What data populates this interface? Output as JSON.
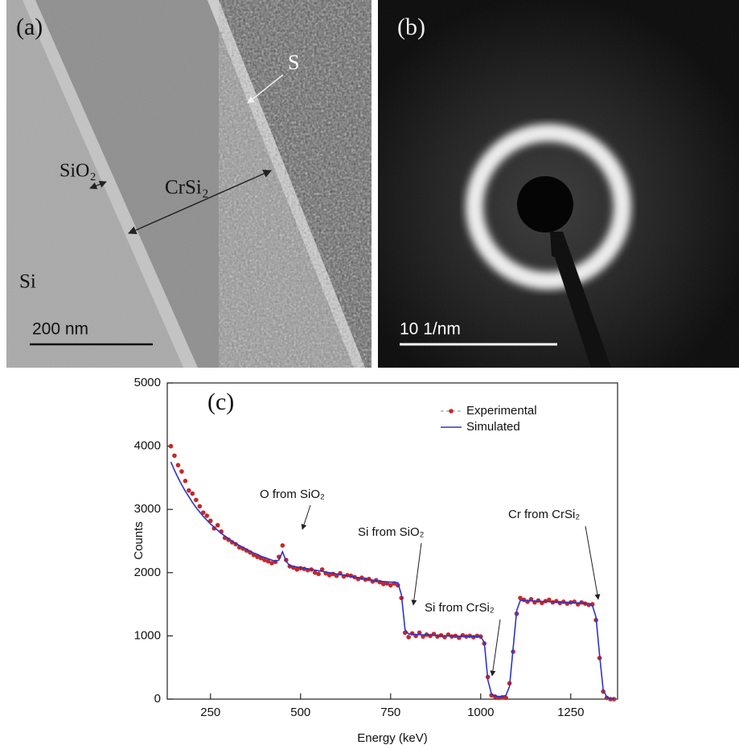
{
  "panels": {
    "a": {
      "label": "(a)",
      "s_label": "S",
      "sio2_label": "SiO₂",
      "crsi2_label": "CrSi₂",
      "si_label": "Si",
      "scale_bar": "200 nm"
    },
    "b": {
      "label": "(b)",
      "scale_bar": "10 1/nm"
    }
  },
  "chart_data": {
    "type": "line",
    "panel_label": "(c)",
    "x_label": "Energy (keV)",
    "y_label": "Counts",
    "xlim": [
      130,
      1380
    ],
    "ylim": [
      0,
      5000
    ],
    "xticks": [
      250,
      500,
      750,
      1000,
      1250
    ],
    "yticks": [
      0,
      1000,
      2000,
      3000,
      4000,
      5000
    ],
    "legend": "upper right",
    "annotations": [
      "O from SiO₂",
      "Si from SiO₂",
      "Si from CrSi₂",
      "Cr from CrSi₂"
    ],
    "x": [
      140,
      150,
      160,
      170,
      180,
      190,
      200,
      210,
      220,
      230,
      240,
      250,
      260,
      270,
      280,
      290,
      300,
      310,
      320,
      330,
      340,
      350,
      360,
      370,
      380,
      390,
      400,
      410,
      420,
      430,
      440,
      450,
      460,
      470,
      480,
      490,
      500,
      510,
      520,
      530,
      540,
      550,
      560,
      570,
      580,
      590,
      600,
      610,
      620,
      630,
      640,
      650,
      660,
      670,
      680,
      690,
      700,
      710,
      720,
      730,
      740,
      750,
      760,
      770,
      780,
      790,
      800,
      810,
      820,
      830,
      840,
      850,
      860,
      870,
      880,
      890,
      900,
      910,
      920,
      930,
      940,
      950,
      960,
      970,
      980,
      990,
      1000,
      1010,
      1020,
      1030,
      1040,
      1050,
      1060,
      1070,
      1080,
      1090,
      1100,
      1110,
      1120,
      1130,
      1140,
      1150,
      1160,
      1170,
      1180,
      1190,
      1200,
      1210,
      1220,
      1230,
      1240,
      1250,
      1260,
      1270,
      1280,
      1290,
      1300,
      1310,
      1320,
      1330,
      1340,
      1350,
      1360,
      1370
    ],
    "series": [
      {
        "name": "Experimental",
        "color": "#c62828",
        "mode": "markers",
        "values": [
          4000,
          3850,
          3700,
          3600,
          3450,
          3300,
          3250,
          3150,
          3050,
          2950,
          2900,
          2820,
          2700,
          2750,
          2650,
          2550,
          2520,
          2480,
          2450,
          2400,
          2380,
          2350,
          2320,
          2280,
          2250,
          2230,
          2200,
          2180,
          2150,
          2170,
          2250,
          2430,
          2200,
          2100,
          2080,
          2050,
          2070,
          2060,
          2040,
          2050,
          2000,
          1980,
          2050,
          1990,
          1960,
          1980,
          1950,
          1990,
          1940,
          1960,
          1950,
          1930,
          1900,
          1920,
          1890,
          1900,
          1860,
          1880,
          1850,
          1820,
          1830,
          1800,
          1830,
          1800,
          1600,
          1050,
          980,
          1040,
          1000,
          1050,
          990,
          1020,
          1000,
          1030,
          990,
          1010,
          980,
          1020,
          990,
          1000,
          970,
          1010,
          990,
          1000,
          980,
          1000,
          990,
          880,
          350,
          60,
          40,
          20,
          30,
          20,
          250,
          750,
          1350,
          1600,
          1570,
          1540,
          1580,
          1530,
          1560,
          1520,
          1550,
          1570,
          1530,
          1550,
          1520,
          1540,
          1510,
          1530,
          1540,
          1500,
          1530,
          1510,
          1490,
          1500,
          1250,
          650,
          120,
          20,
          0,
          0
        ]
      },
      {
        "name": "Simulated",
        "color": "#2b35c9",
        "mode": "line",
        "values": [
          3750,
          3620,
          3500,
          3390,
          3290,
          3200,
          3110,
          3030,
          2960,
          2890,
          2830,
          2770,
          2720,
          2670,
          2620,
          2580,
          2540,
          2500,
          2460,
          2430,
          2400,
          2370,
          2340,
          2310,
          2290,
          2260,
          2240,
          2220,
          2200,
          2180,
          2200,
          2330,
          2180,
          2110,
          2100,
          2090,
          2080,
          2070,
          2060,
          2050,
          2040,
          2030,
          2020,
          2010,
          2000,
          1990,
          1980,
          1970,
          1960,
          1950,
          1940,
          1930,
          1920,
          1910,
          1900,
          1890,
          1880,
          1870,
          1865,
          1860,
          1855,
          1850,
          1850,
          1840,
          1650,
          1100,
          1030,
          1025,
          1020,
          1020,
          1015,
          1015,
          1010,
          1010,
          1005,
          1005,
          1000,
          1000,
          1000,
          1000,
          995,
          995,
          995,
          990,
          990,
          990,
          985,
          900,
          300,
          80,
          50,
          40,
          40,
          60,
          200,
          800,
          1400,
          1560,
          1560,
          1555,
          1555,
          1550,
          1550,
          1545,
          1545,
          1540,
          1540,
          1535,
          1535,
          1530,
          1530,
          1525,
          1525,
          1520,
          1520,
          1515,
          1510,
          1480,
          1300,
          700,
          150,
          30,
          10,
          0
        ]
      }
    ]
  }
}
